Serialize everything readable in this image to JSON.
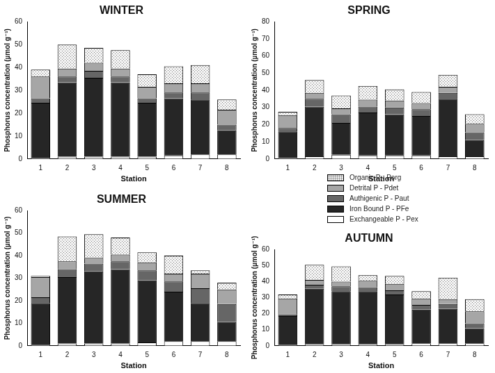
{
  "chart_data": [
    {
      "type": "bar",
      "title": "WINTER",
      "x_label": "Station",
      "y_label": "Phosphorus concentration (µmol g⁻¹)",
      "categories": [
        "1",
        "2",
        "3",
        "4",
        "5",
        "6",
        "7",
        "8"
      ],
      "stacked": true,
      "grid": false,
      "ylim": [
        0,
        60
      ],
      "yticks": [
        0,
        10,
        20,
        30,
        40,
        50,
        60
      ],
      "series": [
        {
          "name": "Exchangeable P - Pex",
          "color": "#ffffff",
          "values": [
            0.5,
            1,
            1,
            1,
            1,
            1.5,
            2,
            2
          ]
        },
        {
          "name": "Iron Bound P - PFe",
          "color": "#262626",
          "values": [
            24,
            32.5,
            34.5,
            32.5,
            23.5,
            25,
            24,
            10.5
          ]
        },
        {
          "name": "Authigenic P - Paut",
          "color": "#666666",
          "values": [
            2,
            2.5,
            3,
            2.5,
            2,
            2.5,
            3,
            2.5
          ]
        },
        {
          "name": "Detrital P - Pdet",
          "color": "#a6a6a6",
          "values": [
            9.5,
            3.5,
            3.5,
            3.5,
            5,
            4,
            4,
            6.5
          ]
        },
        {
          "name": "Organic P - Porg",
          "color": "#f4f4f4",
          "marker": "dots",
          "values": [
            3,
            10.5,
            6.5,
            8,
            5.5,
            7.5,
            8,
            4.5
          ]
        }
      ]
    },
    {
      "type": "bar",
      "title": "SPRING",
      "x_label": "Station",
      "y_label": "Phosphorus concentration (µmol g⁻¹)",
      "categories": [
        "1",
        "2",
        "3",
        "4",
        "5",
        "6",
        "7",
        "8"
      ],
      "stacked": true,
      "grid": false,
      "ylim": [
        0,
        80
      ],
      "yticks": [
        0,
        10,
        20,
        30,
        40,
        50,
        60,
        70,
        80
      ],
      "series": [
        {
          "name": "Exchangeable P - Pex",
          "color": "#ffffff",
          "values": [
            0.5,
            1.5,
            2.5,
            2,
            2,
            2,
            1.5,
            1.5
          ]
        },
        {
          "name": "Iron Bound P - PFe",
          "color": "#262626",
          "values": [
            15.5,
            29,
            18.5,
            25,
            24,
            23,
            33.5,
            9.5
          ]
        },
        {
          "name": "Authigenic P - Paut",
          "color": "#666666",
          "values": [
            2,
            4.5,
            5,
            3.5,
            4,
            4,
            3.5,
            4.5
          ]
        },
        {
          "name": "Detrital P - Pdet",
          "color": "#a6a6a6",
          "values": [
            7.5,
            3.5,
            3.5,
            4,
            4,
            3.5,
            3.5,
            5
          ]
        },
        {
          "name": "Organic P - Porg",
          "color": "#f4f4f4",
          "marker": "dots",
          "values": [
            2,
            7.5,
            7.5,
            8,
            6.5,
            6.5,
            7,
            5.5
          ]
        }
      ]
    },
    {
      "type": "bar",
      "title": "SUMMER",
      "x_label": "Station",
      "y_label": "Phosphorus concentration (µmol g⁻¹)",
      "categories": [
        "1",
        "2",
        "3",
        "4",
        "5",
        "6",
        "7",
        "8"
      ],
      "stacked": true,
      "grid": false,
      "ylim": [
        0,
        60
      ],
      "yticks": [
        0,
        10,
        20,
        30,
        40,
        50,
        60
      ],
      "series": [
        {
          "name": "Exchangeable P - Pex",
          "color": "#ffffff",
          "values": [
            0.5,
            1,
            1,
            1,
            1.5,
            2,
            2,
            2
          ]
        },
        {
          "name": "Iron Bound P - PFe",
          "color": "#262626",
          "values": [
            18.5,
            29.5,
            32,
            33,
            27.5,
            22,
            17,
            8.5
          ]
        },
        {
          "name": "Authigenic P - Paut",
          "color": "#666666",
          "values": [
            2.5,
            3.5,
            3.5,
            3.5,
            4.5,
            4.5,
            6.5,
            8
          ]
        },
        {
          "name": "Detrital P - Pdet",
          "color": "#a6a6a6",
          "values": [
            9,
            3.5,
            2.5,
            3,
            3.5,
            3.5,
            6.5,
            6.5
          ]
        },
        {
          "name": "Organic P - Porg",
          "color": "#f4f4f4",
          "marker": "dots",
          "values": [
            0.5,
            11,
            10.5,
            7.5,
            4.5,
            8,
            1.5,
            3
          ]
        }
      ]
    },
    {
      "type": "bar",
      "title": "AUTUMN",
      "x_label": "Station",
      "y_label": "Phosphorus concentration (µmol g⁻¹)",
      "categories": [
        "1",
        "2",
        "3",
        "4",
        "5",
        "6",
        "7",
        "8"
      ],
      "stacked": true,
      "grid": false,
      "legend": "top-right",
      "ylim": [
        0,
        60
      ],
      "yticks": [
        0,
        10,
        20,
        30,
        40,
        50,
        60
      ],
      "series": [
        {
          "name": "Exchangeable P - Pex",
          "color": "#ffffff",
          "values": [
            0.5,
            1,
            1,
            1,
            1,
            1.5,
            1.5,
            1.5
          ]
        },
        {
          "name": "Iron Bound P - PFe",
          "color": "#262626",
          "values": [
            18,
            34.5,
            33,
            33,
            31,
            21,
            21.5,
            9.5
          ]
        },
        {
          "name": "Authigenic P - Paut",
          "color": "#666666",
          "values": [
            1,
            2.5,
            3,
            2.5,
            2.5,
            3,
            3,
            3
          ]
        },
        {
          "name": "Detrital P - Pdet",
          "color": "#a6a6a6",
          "values": [
            10,
            3,
            3,
            4,
            4,
            4,
            3,
            7.5
          ]
        },
        {
          "name": "Organic P - Porg",
          "color": "#f4f4f4",
          "marker": "dots",
          "values": [
            2.5,
            9.5,
            9.5,
            3.5,
            5,
            4.5,
            13.5,
            7.5
          ]
        }
      ]
    }
  ]
}
